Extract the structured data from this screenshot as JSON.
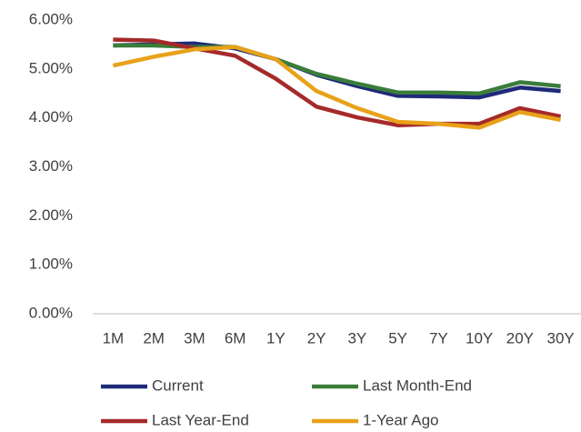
{
  "chart_data": {
    "type": "line",
    "categories": [
      "1M",
      "2M",
      "3M",
      "6M",
      "1Y",
      "2Y",
      "3Y",
      "5Y",
      "7Y",
      "10Y",
      "20Y",
      "30Y"
    ],
    "series": [
      {
        "name": "Current",
        "color": "#1f2a7a",
        "values": [
          5.48,
          5.5,
          5.52,
          5.42,
          5.2,
          4.88,
          4.65,
          4.45,
          4.44,
          4.42,
          4.62,
          4.55
        ]
      },
      {
        "name": "Last Month-End",
        "color": "#3a7d3a",
        "values": [
          5.48,
          5.48,
          5.45,
          5.45,
          5.2,
          4.9,
          4.7,
          4.52,
          4.52,
          4.5,
          4.73,
          4.65
        ]
      },
      {
        "name": "Last Year-End",
        "color": "#a52a2a",
        "values": [
          5.6,
          5.58,
          5.42,
          5.27,
          4.8,
          4.23,
          4.01,
          3.85,
          3.88,
          3.88,
          4.2,
          4.03
        ]
      },
      {
        "name": "1-Year Ago",
        "color": "#e8a21a",
        "values": [
          5.07,
          5.25,
          5.4,
          5.45,
          5.2,
          4.55,
          4.2,
          3.92,
          3.88,
          3.8,
          4.12,
          3.96
        ]
      }
    ],
    "ylim": [
      0,
      6
    ],
    "yticks": [
      {
        "value": 0,
        "label": "0.00%"
      },
      {
        "value": 1,
        "label": "1.00%"
      },
      {
        "value": 2,
        "label": "2.00%"
      },
      {
        "value": 3,
        "label": "3.00%"
      },
      {
        "value": 4,
        "label": "4.00%"
      },
      {
        "value": 5,
        "label": "5.00%"
      },
      {
        "value": 6,
        "label": "6.00%"
      }
    ],
    "grid": false,
    "legend": "bottom"
  }
}
